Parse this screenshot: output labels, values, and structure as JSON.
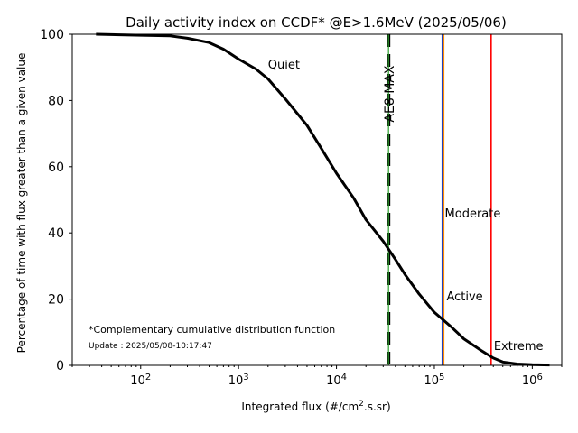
{
  "chart_data": {
    "type": "line",
    "title": "Daily activity index on CCDF* @E>1.6MeV (2025/05/06)",
    "xlabel": "Integrated flux (#/cm².s.sr)",
    "ylabel": "Percentage of time with flux greater than a given value",
    "xscale": "log",
    "xlim": [
      20,
      2000000
    ],
    "ylim": [
      0,
      100
    ],
    "x_ticks": [
      {
        "value": 100,
        "base": "10",
        "exp": "2"
      },
      {
        "value": 1000,
        "base": "10",
        "exp": "3"
      },
      {
        "value": 10000,
        "base": "10",
        "exp": "4"
      },
      {
        "value": 100000,
        "base": "10",
        "exp": "5"
      },
      {
        "value": 1000000,
        "base": "10",
        "exp": "6"
      }
    ],
    "y_ticks": [
      0,
      20,
      40,
      60,
      80,
      100
    ],
    "grid": false,
    "series": [
      {
        "color": "#000000",
        "x": [
          35,
          100,
          200,
          300,
          500,
          700,
          1000,
          1500,
          2000,
          3000,
          5000,
          7000,
          10000,
          15000,
          20000,
          30000,
          40000,
          50000,
          70000,
          100000,
          150000,
          200000,
          300000,
          400000,
          500000,
          700000,
          1000000,
          1500000
        ],
        "y": [
          100,
          99.7,
          99.5,
          98.8,
          97.5,
          95.5,
          92.5,
          89.5,
          86.5,
          80.5,
          72.5,
          65.5,
          58,
          50.5,
          44,
          37.5,
          32,
          27.5,
          21.5,
          16,
          11.5,
          8,
          4.5,
          2.2,
          1.0,
          0.4,
          0.2,
          0.1
        ]
      }
    ],
    "thresholds": [
      {
        "label": "AE8 MAX",
        "x": 34000,
        "color": "#000000",
        "style": "dashed-thick",
        "label_color": "#000000",
        "label_y": 85
      },
      {
        "label": "Quiet",
        "x": 34000,
        "color": "#2ca02c",
        "style": "solid-thin",
        "label_color": "#008000",
        "label_y": 91
      },
      {
        "label": "Moderate",
        "x": 120000,
        "color": "#1f3fbf",
        "style": "solid-thin",
        "label_color": "#ffd700",
        "label_y": 46
      },
      {
        "label": "Active",
        "x": 125000,
        "color": "#ff8c00",
        "style": "solid-thin",
        "label_color": "#ff8c00",
        "label_y": 21
      },
      {
        "label": "Extreme",
        "x": 380000,
        "color": "#ff0000",
        "style": "solid",
        "label_color": "#ff0000",
        "label_y": 6
      }
    ],
    "annotations": {
      "footnote": "*Complementary cumulative distribution function",
      "update": "Update : 2025/05/08-10:17:47"
    }
  }
}
